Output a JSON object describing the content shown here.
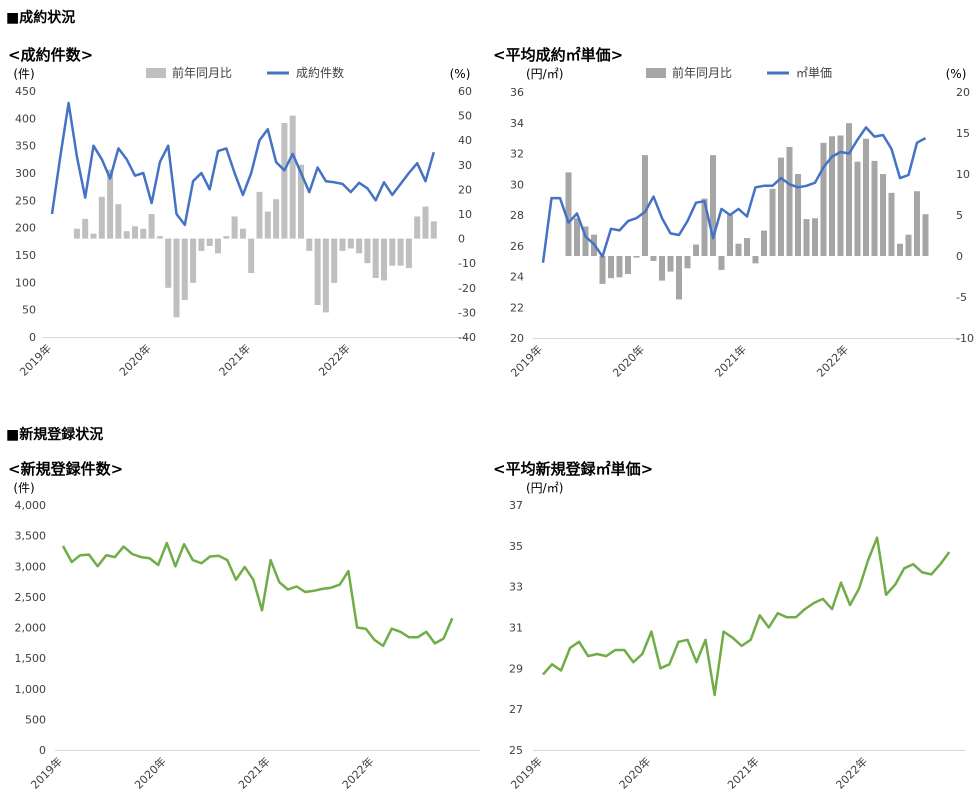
{
  "sections": {
    "contract": "■成約状況",
    "new_listing": "■新規登録状況"
  },
  "colors": {
    "blue": "#4472c4",
    "green": "#70ad47",
    "bar_light": "#bfbfbf",
    "bar_dark": "#a6a6a6",
    "axis_text": "#404040"
  },
  "chart_data": [
    {
      "id": "c1",
      "type": "bar+line",
      "title": "<成約件数>",
      "y_unit": "(件)",
      "y2_unit": "(%)",
      "ylim": [
        0,
        450
      ],
      "yticks": [
        0,
        50,
        100,
        150,
        200,
        250,
        300,
        350,
        400,
        450
      ],
      "y2lim": [
        -40,
        60
      ],
      "y2ticks": [
        -40,
        -30,
        -20,
        -10,
        0,
        10,
        20,
        30,
        40,
        50,
        60
      ],
      "x_labels": [
        "2019年",
        "2020年",
        "2021年",
        "2022年"
      ],
      "x_label_months": [
        0,
        12,
        24,
        36
      ],
      "legend": [
        "前年同月比",
        "成約件数"
      ],
      "series": [
        {
          "name": "前年同月比",
          "kind": "bar",
          "axis": "y2",
          "values": [
            null,
            null,
            null,
            4,
            8,
            2,
            17,
            28,
            14,
            3,
            5,
            4,
            10,
            1,
            -20,
            -32,
            -25,
            -18,
            -5,
            -3,
            -6,
            1,
            9,
            4,
            -14,
            19,
            11,
            16,
            47,
            50,
            30,
            -5,
            -27,
            -30,
            -18,
            -5,
            -4,
            -6,
            -10,
            -16,
            -17,
            -11,
            -11,
            -12,
            9,
            13,
            7
          ]
        },
        {
          "name": "成約件数",
          "kind": "line",
          "axis": "y",
          "values": [
            225,
            330,
            428,
            330,
            255,
            350,
            325,
            290,
            345,
            325,
            295,
            300,
            245,
            320,
            350,
            225,
            205,
            285,
            300,
            270,
            340,
            345,
            300,
            260,
            300,
            360,
            380,
            320,
            305,
            335,
            300,
            265,
            310,
            285,
            283,
            280,
            265,
            282,
            272,
            250,
            283,
            260,
            280,
            300,
            318,
            285,
            338
          ]
        }
      ]
    },
    {
      "id": "c2",
      "type": "bar+line",
      "title": "<平均成約㎡単価>",
      "y_unit": "(円/㎡)",
      "y2_unit": "(%)",
      "ylim": [
        20,
        36
      ],
      "yticks": [
        20,
        22,
        24,
        26,
        28,
        30,
        32,
        34,
        36
      ],
      "y2lim": [
        -10,
        20
      ],
      "y2ticks": [
        -10,
        -5,
        0,
        5,
        10,
        15,
        20
      ],
      "x_labels": [
        "2019年",
        "2020年",
        "2021年",
        "2022年"
      ],
      "x_label_months": [
        0,
        12,
        24,
        36
      ],
      "legend": [
        "前年同月比",
        "㎡単価"
      ],
      "series": [
        {
          "name": "前年同月比",
          "kind": "bar",
          "axis": "y2",
          "values": [
            null,
            null,
            null,
            10.2,
            4.6,
            3.6,
            2.6,
            -3.4,
            -2.7,
            -2.6,
            -2.2,
            -0.2,
            12.3,
            -0.6,
            -3,
            -1.9,
            -5.3,
            -1.5,
            1.4,
            7,
            12.3,
            -1.7,
            5,
            1.5,
            2.2,
            -0.9,
            3.1,
            8.2,
            12,
            13.3,
            10,
            4.5,
            4.6,
            13.8,
            14.6,
            14.7,
            16.2,
            11.5,
            14.3,
            11.6,
            10,
            7.7,
            1.5,
            2.6,
            7.9,
            5.1
          ]
        },
        {
          "name": "㎡単価",
          "kind": "line",
          "axis": "y",
          "values": [
            24.9,
            29.1,
            29.1,
            27.5,
            28.1,
            26.6,
            26.1,
            25.3,
            27.1,
            27.0,
            27.6,
            27.8,
            28.2,
            29.2,
            27.8,
            26.8,
            26.7,
            27.6,
            28.8,
            28.9,
            26.5,
            28.4,
            28.0,
            28.4,
            27.9,
            29.8,
            29.9,
            29.9,
            30.4,
            30.0,
            29.8,
            29.9,
            30.1,
            31.1,
            31.8,
            32.1,
            32.0,
            32.9,
            33.7,
            33.1,
            33.2,
            32.3,
            30.4,
            30.6,
            32.7,
            33.0
          ]
        }
      ]
    },
    {
      "id": "c3",
      "type": "line",
      "title": "<新規登録件数>",
      "y_unit": "(件)",
      "ylim": [
        0,
        4000
      ],
      "yticks": [
        0,
        500,
        1000,
        1500,
        2000,
        2500,
        3000,
        3500,
        4000
      ],
      "ytick_labels": [
        "0",
        "500",
        "1,000",
        "1,500",
        "2,000",
        "2,500",
        "3,000",
        "3,500",
        "4,000"
      ],
      "x_labels": [
        "2019年",
        "2020年",
        "2021年",
        "2022年"
      ],
      "x_label_months": [
        0,
        12,
        24,
        36
      ],
      "series": [
        {
          "name": "新規登録件数",
          "kind": "line",
          "axis": "y",
          "values": [
            3330,
            3070,
            3180,
            3190,
            3000,
            3180,
            3150,
            3320,
            3200,
            3150,
            3130,
            3020,
            3380,
            3000,
            3360,
            3100,
            3050,
            3160,
            3170,
            3100,
            2780,
            2990,
            2780,
            2280,
            3100,
            2740,
            2620,
            2670,
            2580,
            2600,
            2630,
            2650,
            2700,
            2920,
            2000,
            1980,
            1800,
            1700,
            1980,
            1930,
            1840,
            1840,
            1930,
            1740,
            1820,
            2150
          ]
        }
      ]
    },
    {
      "id": "c4",
      "type": "line",
      "title": "<平均新規登録㎡単価>",
      "y_unit": "(円/㎡)",
      "ylim": [
        25,
        37
      ],
      "yticks": [
        25,
        27,
        29,
        31,
        33,
        35,
        37
      ],
      "x_labels": [
        "2019年",
        "2020年",
        "2021年",
        "2022年"
      ],
      "x_label_months": [
        0,
        12,
        24,
        36
      ],
      "series": [
        {
          "name": "平均新規登録㎡単価",
          "kind": "line",
          "axis": "y",
          "values": [
            28.7,
            29.2,
            28.9,
            30.0,
            30.3,
            29.6,
            29.7,
            29.6,
            29.9,
            29.9,
            29.3,
            29.7,
            30.8,
            29.0,
            29.2,
            30.3,
            30.4,
            29.3,
            30.4,
            27.7,
            30.8,
            30.5,
            30.1,
            30.4,
            31.6,
            31.0,
            31.7,
            31.5,
            31.5,
            31.9,
            32.2,
            32.4,
            31.9,
            33.2,
            32.1,
            32.9,
            34.3,
            35.4,
            32.6,
            33.1,
            33.9,
            34.1,
            33.7,
            33.6,
            34.1,
            34.7
          ]
        }
      ]
    }
  ]
}
